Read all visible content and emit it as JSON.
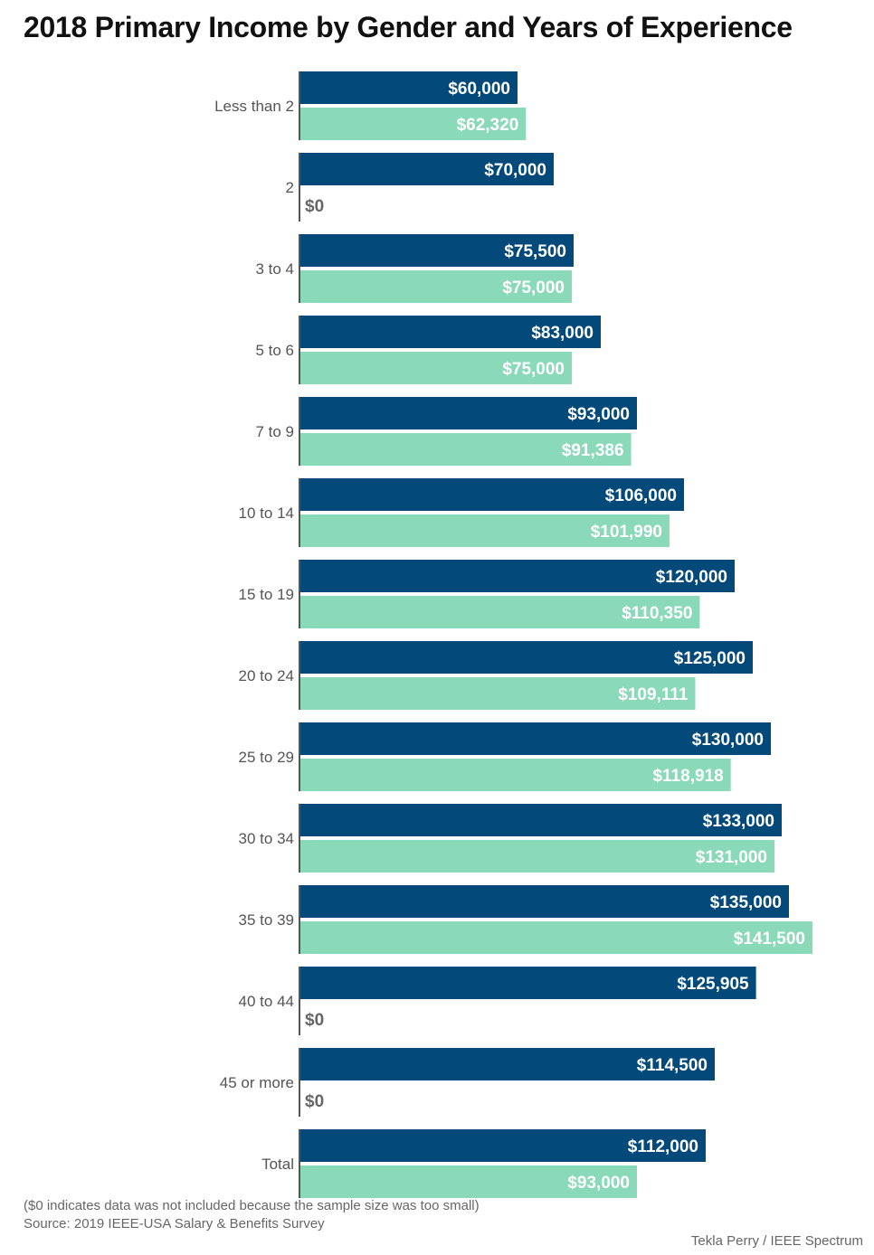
{
  "chart_data": {
    "type": "bar",
    "orientation": "horizontal",
    "title": "2018 Primary Income by Gender and Years of Experience",
    "categories": [
      "Less than 2",
      "2",
      "3 to 4",
      "5 to 6",
      "7 to 9",
      "10 to 14",
      "15 to 19",
      "20 to 24",
      "25 to 29",
      "30 to 34",
      "35 to 39",
      "40 to 44",
      "45 or more",
      "Total"
    ],
    "series": [
      {
        "name": "series-1",
        "color": "#03497a",
        "values": [
          60000,
          70000,
          75500,
          83000,
          93000,
          106000,
          120000,
          125000,
          130000,
          133000,
          135000,
          125905,
          114500,
          112000
        ],
        "labels": [
          "$60,000",
          "$70,000",
          "$75,500",
          "$83,000",
          "$93,000",
          "$106,000",
          "$120,000",
          "$125,000",
          "$130,000",
          "$133,000",
          "$135,000",
          "$125,905",
          "$114,500",
          "$112,000"
        ]
      },
      {
        "name": "series-2",
        "color": "#8ad9b8",
        "values": [
          62320,
          0,
          75000,
          75000,
          91386,
          101990,
          110350,
          109111,
          118918,
          131000,
          141500,
          0,
          0,
          93000
        ],
        "labels": [
          "$62,320",
          "$0",
          "$75,000",
          "$75,000",
          "$91,386",
          "$101,990",
          "$110,350",
          "$109,111",
          "$118,918",
          "$131,000",
          "$141,500",
          "$0",
          "$0",
          "$93,000"
        ]
      }
    ],
    "xlim": [
      0,
      145000
    ],
    "zero_label_color": "#666666",
    "axis_color": "#555555"
  },
  "notes": {
    "footnote": "($0 indicates data was not included because the sample size was too small)",
    "source": "Source: 2019 IEEE-USA Salary & Benefits Survey",
    "credit": "Tekla Perry / IEEE Spectrum"
  }
}
